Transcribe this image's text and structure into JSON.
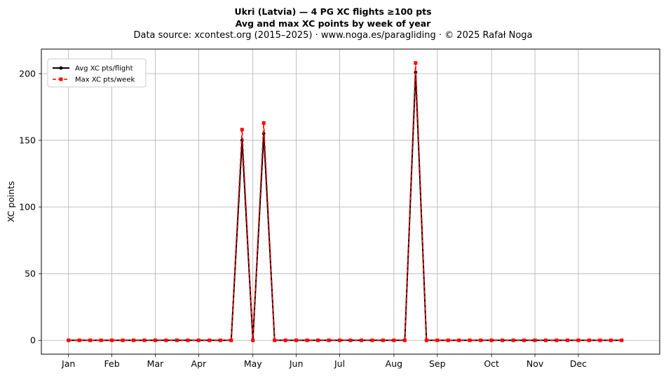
{
  "title_line1": "Ukri (Latvia)  —  4 PG XC flights ≥100 pts",
  "title_line2": "Avg and max XC points by week of year",
  "subtitle": "Data source: xcontest.org (2015–2025)  ·  www.noga.es/paragliding  ·  © 2025 Rafał Noga",
  "chart_data": {
    "type": "line",
    "title": "Ukri (Latvia)  —  4 PG XC flights ≥100 pts",
    "subtitle": "Avg and max XC points by week of year",
    "xlabel": "",
    "ylabel": "XC points",
    "x_unit": "week of year",
    "x_tick_labels": [
      {
        "label": "Jan",
        "week": 1
      },
      {
        "label": "Feb",
        "week": 5
      },
      {
        "label": "Mar",
        "week": 9
      },
      {
        "label": "Apr",
        "week": 13
      },
      {
        "label": "May",
        "week": 18
      },
      {
        "label": "Jun",
        "week": 22
      },
      {
        "label": "Jul",
        "week": 26
      },
      {
        "label": "Aug",
        "week": 31
      },
      {
        "label": "Sep",
        "week": 35
      },
      {
        "label": "Oct",
        "week": 40
      },
      {
        "label": "Nov",
        "week": 44
      },
      {
        "label": "Dec",
        "week": 48
      }
    ],
    "xlim": [
      -1.5,
      55.5
    ],
    "yticks": [
      0,
      50,
      100,
      150,
      200
    ],
    "ylim": [
      -10.4,
      218.4
    ],
    "grid": true,
    "legend_position": "top-left",
    "x": [
      1,
      2,
      3,
      4,
      5,
      6,
      7,
      8,
      9,
      10,
      11,
      12,
      13,
      14,
      15,
      16,
      17,
      18,
      19,
      20,
      21,
      22,
      23,
      24,
      25,
      26,
      27,
      28,
      29,
      30,
      31,
      32,
      33,
      34,
      35,
      36,
      37,
      38,
      39,
      40,
      41,
      42,
      43,
      44,
      45,
      46,
      47,
      48,
      49,
      50,
      51,
      52
    ],
    "series": [
      {
        "name": "Avg XC pts/flight",
        "color": "#000000",
        "style": "solid",
        "marker": "circle",
        "values": [
          0,
          0,
          0,
          0,
          0,
          0,
          0,
          0,
          0,
          0,
          0,
          0,
          0,
          0,
          0,
          0,
          150,
          0,
          155,
          0,
          0,
          0,
          0,
          0,
          0,
          0,
          0,
          0,
          0,
          0,
          0,
          0,
          201,
          0,
          0,
          0,
          0,
          0,
          0,
          0,
          0,
          0,
          0,
          0,
          0,
          0,
          0,
          0,
          0,
          0,
          0,
          0
        ]
      },
      {
        "name": "Max XC pts/week",
        "color": "#ff0000",
        "style": "dashed",
        "marker": "square",
        "values": [
          0,
          0,
          0,
          0,
          0,
          0,
          0,
          0,
          0,
          0,
          0,
          0,
          0,
          0,
          0,
          0,
          158,
          0,
          163,
          0,
          0,
          0,
          0,
          0,
          0,
          0,
          0,
          0,
          0,
          0,
          0,
          0,
          208,
          0,
          0,
          0,
          0,
          0,
          0,
          0,
          0,
          0,
          0,
          0,
          0,
          0,
          0,
          0,
          0,
          0,
          0,
          0
        ]
      }
    ]
  }
}
